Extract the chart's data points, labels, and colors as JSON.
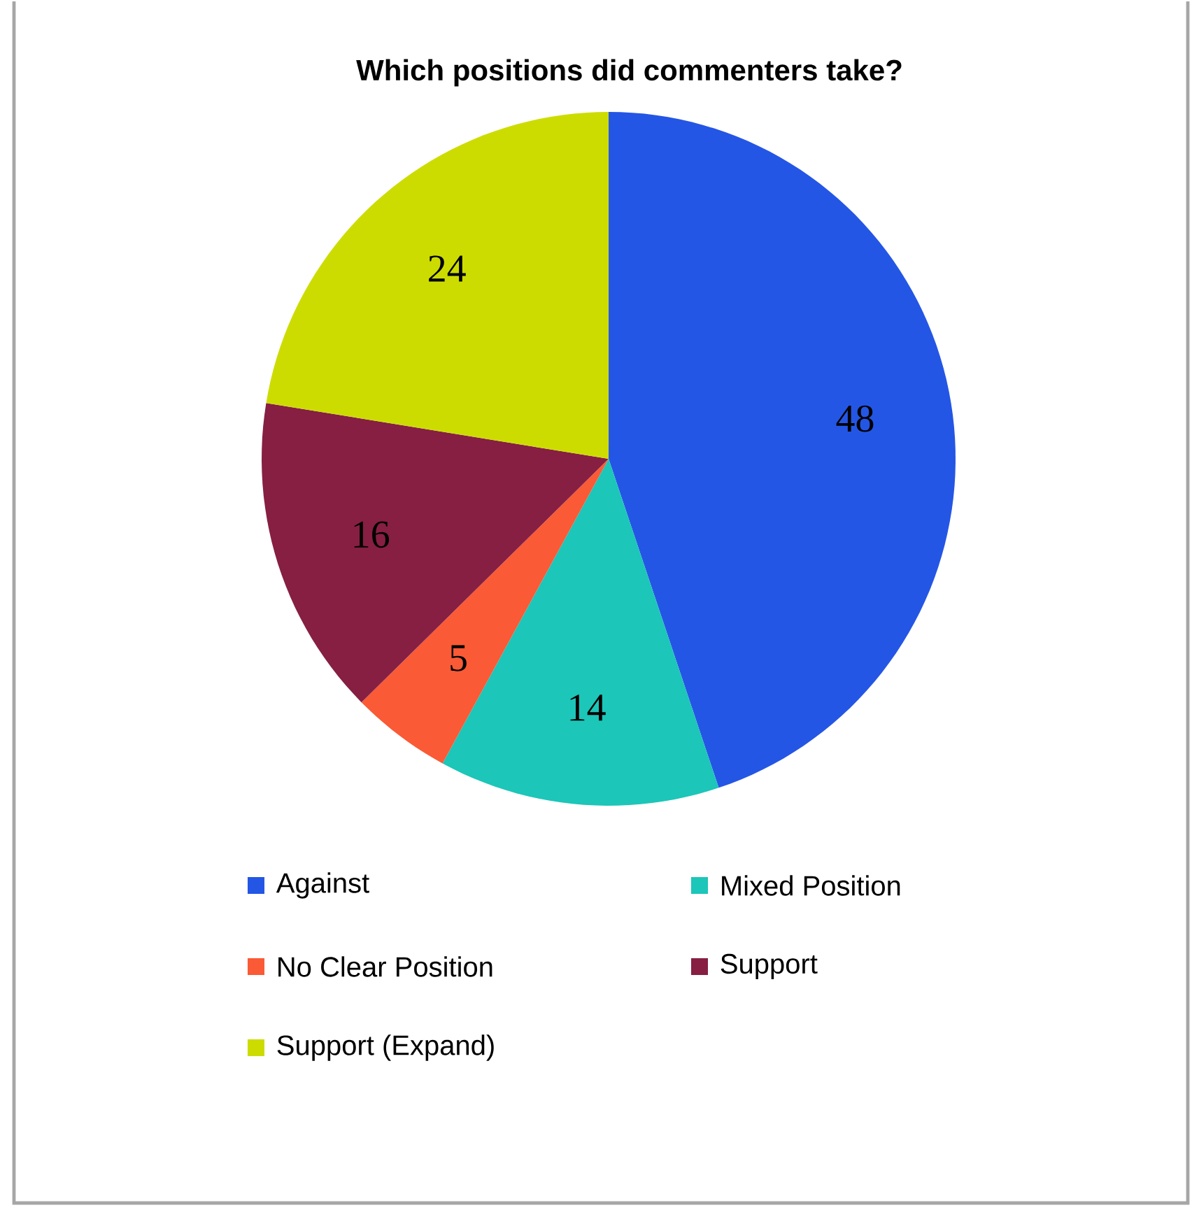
{
  "chart_data": {
    "type": "pie",
    "title": "Which positions did commenters take?",
    "categories": [
      "Against",
      "Mixed Position",
      "No Clear Position",
      "Support",
      "Support (Expand)"
    ],
    "values": [
      48,
      14,
      5,
      16,
      24
    ],
    "colors": [
      "#2456e5",
      "#1cc6b8",
      "#fa5a35",
      "#861f42",
      "#cddc00"
    ],
    "data_labels": true,
    "legend": "bottom"
  }
}
